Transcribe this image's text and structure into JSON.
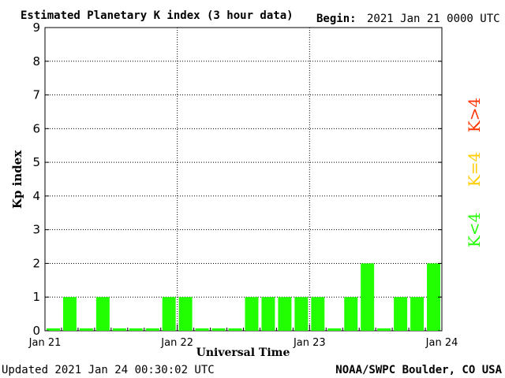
{
  "header": {
    "title": "Estimated Planetary K index (3 hour data)",
    "begin_label": "Begin:",
    "begin_value": "2021 Jan 21 0000 UTC"
  },
  "footer": {
    "updated": "Updated 2021 Jan 24 00:30:02 UTC",
    "credit": "NOAA/SWPC Boulder, CO USA"
  },
  "legend": [
    {
      "label": "K>4",
      "color": "#ff3300"
    },
    {
      "label": "K=4",
      "color": "#ffcc00"
    },
    {
      "label": "K<4",
      "color": "#22ff00"
    }
  ],
  "chart_data": {
    "type": "bar",
    "title": "Estimated Planetary K index (3 hour data)",
    "xlabel": "Universal Time",
    "ylabel": "Kp index",
    "ylim": [
      0,
      9
    ],
    "yticks": [
      "0",
      "1",
      "2",
      "3",
      "4",
      "5",
      "6",
      "7",
      "8",
      "9"
    ],
    "xticks": [
      "Jan 21",
      "Jan 22",
      "Jan 23",
      "Jan 24"
    ],
    "grid": true,
    "bar_color": "#22ff00",
    "values": [
      0.05,
      1,
      0.05,
      1,
      0.05,
      0.05,
      0.05,
      1,
      1,
      0.05,
      0.05,
      0.05,
      1,
      1,
      1,
      1,
      1,
      0.05,
      1,
      2,
      0.05,
      1,
      1,
      2
    ]
  }
}
